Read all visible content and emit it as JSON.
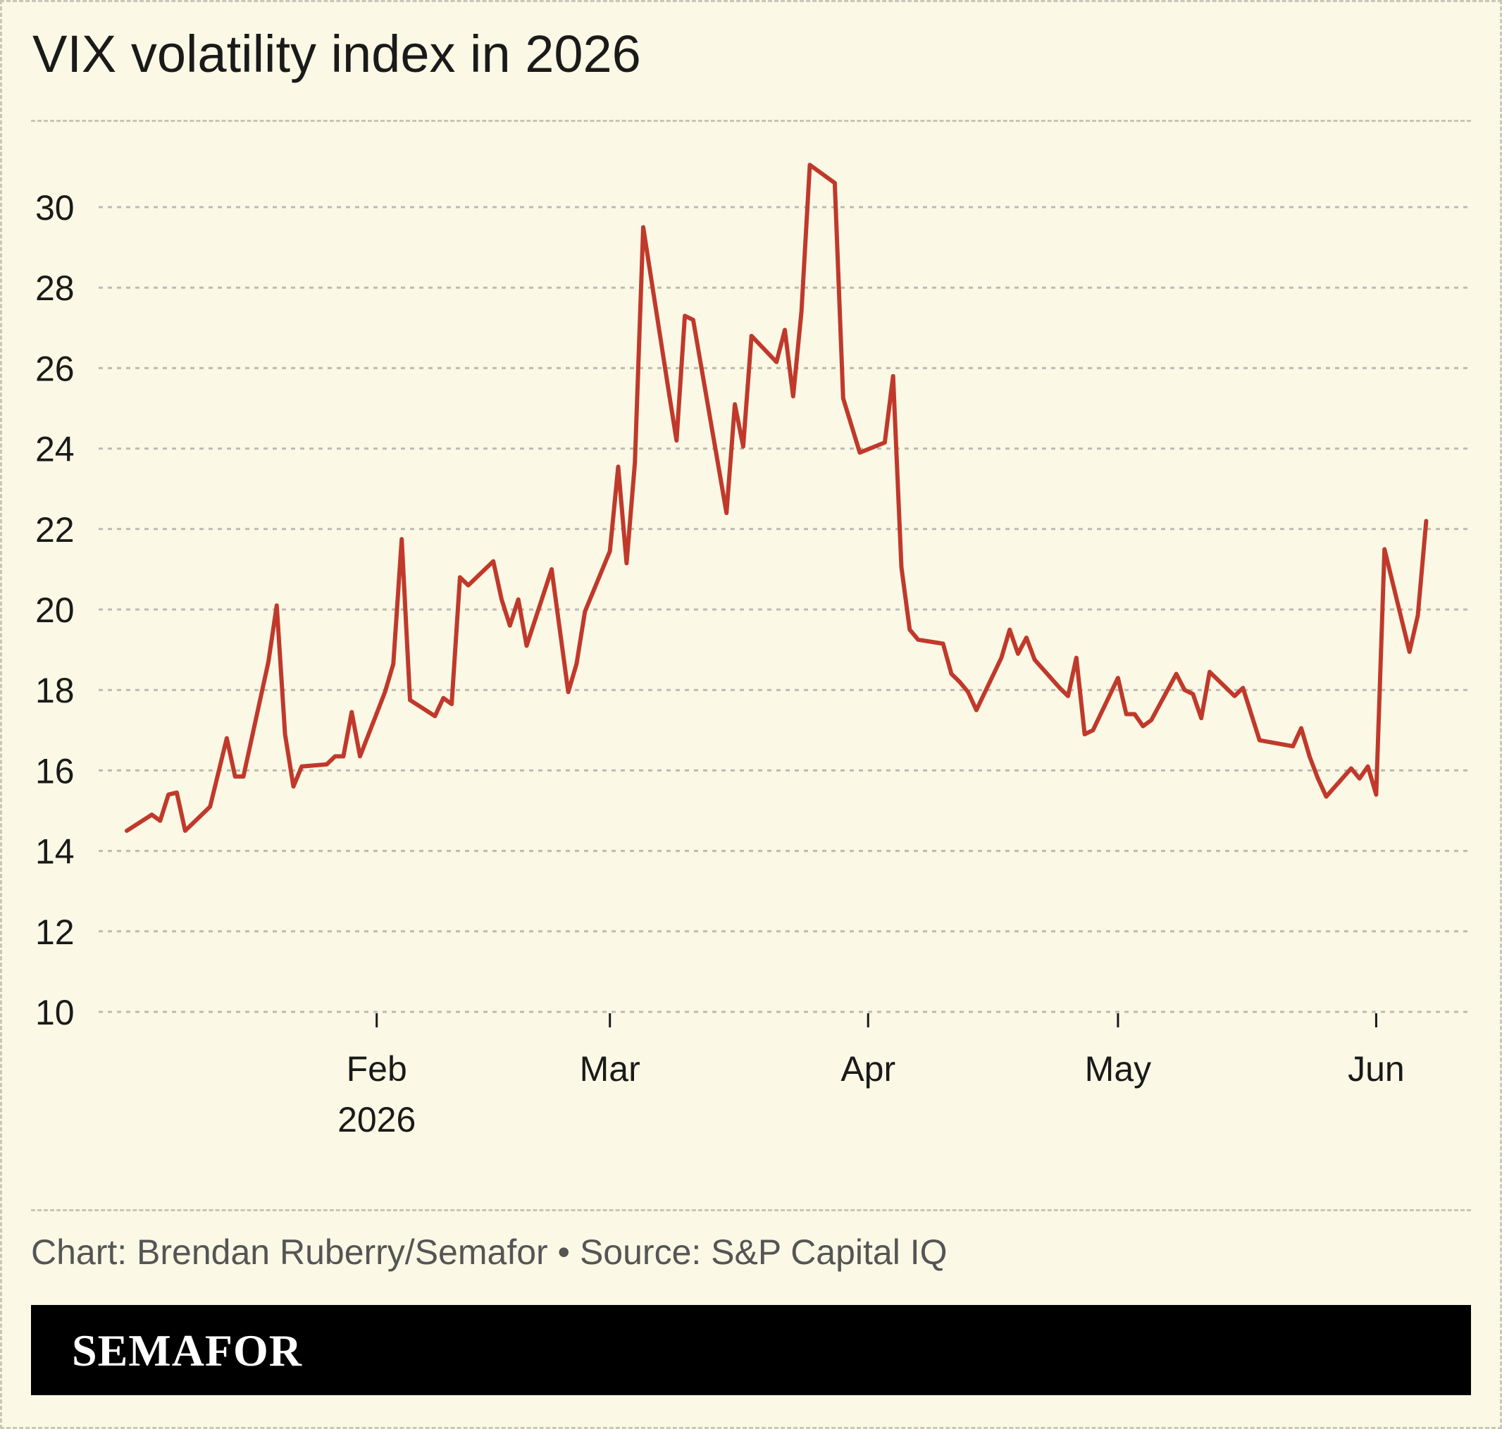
{
  "title": "VIX volatility index in 2026",
  "credit": "Chart: Brendan Ruberry/Semafor • Source: S&P Capital IQ",
  "brand": "SEMAFOR",
  "colors": {
    "background": "#fbf9e6",
    "line": "#c0392b",
    "grid": "#bdbbb0",
    "brand_bar": "#000000"
  },
  "chart_data": {
    "type": "line",
    "title": "VIX volatility index in 2026",
    "xlabel": "",
    "ylabel": "",
    "ylim": [
      10,
      31
    ],
    "yticks": [
      10,
      12,
      14,
      16,
      18,
      20,
      22,
      24,
      26,
      28,
      30
    ],
    "xlim": [
      "2026-01-02",
      "2026-06-09"
    ],
    "xticks": [
      {
        "date": "2026-02-01",
        "label": "Feb",
        "sublabel": "2026"
      },
      {
        "date": "2026-03-01",
        "label": "Mar",
        "sublabel": ""
      },
      {
        "date": "2026-04-01",
        "label": "Apr",
        "sublabel": ""
      },
      {
        "date": "2026-05-01",
        "label": "May",
        "sublabel": ""
      },
      {
        "date": "2026-06-01",
        "label": "Jun",
        "sublabel": ""
      }
    ],
    "grid": true,
    "series": [
      {
        "name": "",
        "points": [
          [
            "2026-01-02",
            14.5
          ],
          [
            "2026-01-05",
            14.9
          ],
          [
            "2026-01-06",
            14.75
          ],
          [
            "2026-01-07",
            15.4
          ],
          [
            "2026-01-08",
            15.45
          ],
          [
            "2026-01-09",
            14.5
          ],
          [
            "2026-01-12",
            15.1
          ],
          [
            "2026-01-14",
            16.8
          ],
          [
            "2026-01-15",
            15.85
          ],
          [
            "2026-01-16",
            15.85
          ],
          [
            "2026-01-19",
            18.7
          ],
          [
            "2026-01-20",
            20.1
          ],
          [
            "2026-01-21",
            16.9
          ],
          [
            "2026-01-22",
            15.6
          ],
          [
            "2026-01-23",
            16.1
          ],
          [
            "2026-01-26",
            16.15
          ],
          [
            "2026-01-27",
            16.35
          ],
          [
            "2026-01-28",
            16.35
          ],
          [
            "2026-01-29",
            17.45
          ],
          [
            "2026-01-30",
            16.35
          ],
          [
            "2026-02-02",
            17.95
          ],
          [
            "2026-02-03",
            18.65
          ],
          [
            "2026-02-04",
            21.75
          ],
          [
            "2026-02-05",
            17.75
          ],
          [
            "2026-02-08",
            17.35
          ],
          [
            "2026-02-09",
            17.8
          ],
          [
            "2026-02-10",
            17.65
          ],
          [
            "2026-02-11",
            20.8
          ],
          [
            "2026-02-12",
            20.6
          ],
          [
            "2026-02-15",
            21.2
          ],
          [
            "2026-02-16",
            20.25
          ],
          [
            "2026-02-17",
            19.6
          ],
          [
            "2026-02-18",
            20.25
          ],
          [
            "2026-02-19",
            19.1
          ],
          [
            "2026-02-22",
            21.0
          ],
          [
            "2026-02-24",
            17.95
          ],
          [
            "2026-02-25",
            18.65
          ],
          [
            "2026-02-26",
            19.95
          ],
          [
            "2026-03-01",
            21.45
          ],
          [
            "2026-03-02",
            23.55
          ],
          [
            "2026-03-03",
            21.15
          ],
          [
            "2026-03-04",
            23.65
          ],
          [
            "2026-03-05",
            29.5
          ],
          [
            "2026-03-08",
            25.5
          ],
          [
            "2026-03-09",
            24.2
          ],
          [
            "2026-03-10",
            27.3
          ],
          [
            "2026-03-11",
            27.2
          ],
          [
            "2026-03-15",
            22.4
          ],
          [
            "2026-03-16",
            25.1
          ],
          [
            "2026-03-17",
            24.05
          ],
          [
            "2026-03-18",
            26.8
          ],
          [
            "2026-03-21",
            26.15
          ],
          [
            "2026-03-22",
            26.95
          ],
          [
            "2026-03-23",
            25.3
          ],
          [
            "2026-03-24",
            27.4
          ],
          [
            "2026-03-25",
            31.05
          ],
          [
            "2026-03-28",
            30.6
          ],
          [
            "2026-03-29",
            25.25
          ],
          [
            "2026-03-31",
            23.9
          ],
          [
            "2026-04-03",
            24.15
          ],
          [
            "2026-04-04",
            25.8
          ],
          [
            "2026-04-05",
            21.05
          ],
          [
            "2026-04-06",
            19.5
          ],
          [
            "2026-04-07",
            19.25
          ],
          [
            "2026-04-10",
            19.15
          ],
          [
            "2026-04-11",
            18.4
          ],
          [
            "2026-04-12",
            18.2
          ],
          [
            "2026-04-13",
            17.95
          ],
          [
            "2026-04-14",
            17.5
          ],
          [
            "2026-04-17",
            18.8
          ],
          [
            "2026-04-18",
            19.5
          ],
          [
            "2026-04-19",
            18.9
          ],
          [
            "2026-04-20",
            19.3
          ],
          [
            "2026-04-21",
            18.75
          ],
          [
            "2026-04-24",
            18.05
          ],
          [
            "2026-04-25",
            17.85
          ],
          [
            "2026-04-26",
            18.8
          ],
          [
            "2026-04-27",
            16.9
          ],
          [
            "2026-04-28",
            17.0
          ],
          [
            "2026-05-01",
            18.3
          ],
          [
            "2026-05-02",
            17.4
          ],
          [
            "2026-05-03",
            17.4
          ],
          [
            "2026-05-04",
            17.1
          ],
          [
            "2026-05-05",
            17.25
          ],
          [
            "2026-05-08",
            18.4
          ],
          [
            "2026-05-09",
            18.0
          ],
          [
            "2026-05-10",
            17.9
          ],
          [
            "2026-05-11",
            17.3
          ],
          [
            "2026-05-12",
            18.45
          ],
          [
            "2026-05-15",
            17.85
          ],
          [
            "2026-05-16",
            18.05
          ],
          [
            "2026-05-18",
            16.75
          ],
          [
            "2026-05-22",
            16.6
          ],
          [
            "2026-05-23",
            17.05
          ],
          [
            "2026-05-24",
            16.35
          ],
          [
            "2026-05-25",
            15.8
          ],
          [
            "2026-05-26",
            15.35
          ],
          [
            "2026-05-29",
            16.05
          ],
          [
            "2026-05-30",
            15.8
          ],
          [
            "2026-05-31",
            16.1
          ],
          [
            "2026-06-01",
            15.4
          ],
          [
            "2026-06-02",
            21.5
          ],
          [
            "2026-06-05",
            18.95
          ],
          [
            "2026-06-06",
            19.85
          ],
          [
            "2026-06-07",
            22.2
          ]
        ]
      }
    ]
  }
}
